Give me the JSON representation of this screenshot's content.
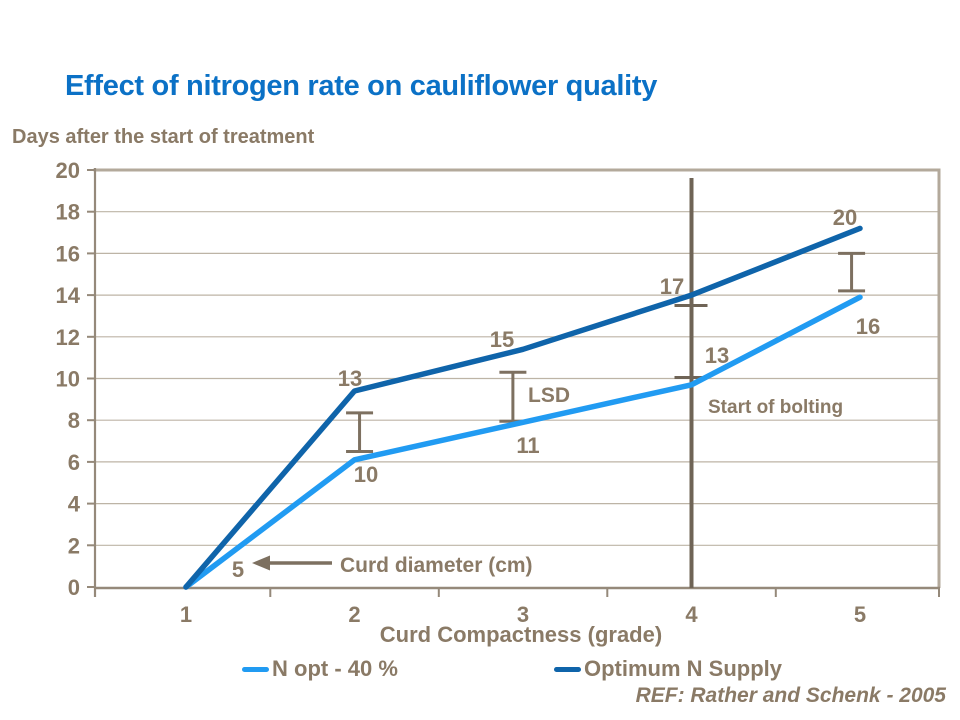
{
  "slide": {
    "ref": "REF: Rather and Schenk - 2005"
  },
  "colors": {
    "title": "#0B71C6",
    "text_brown": "#8A7A66",
    "grid": "#BDB4A6",
    "border": "#B3A99B",
    "axis": "#95897A",
    "annotation": "#7D7060",
    "bolting_line": "#6F6456",
    "series_light": "#219BF2",
    "series_dark": "#0F64AA"
  },
  "chart_data": {
    "type": "line",
    "title": "Effect of nitrogen rate on cauliflower quality",
    "xlabel": "Curd Compactness (grade)",
    "ylabel": "Days after the start of treatment",
    "x": [
      1,
      2,
      3,
      4,
      5
    ],
    "ylim": [
      0,
      20
    ],
    "ytick_step": 2,
    "grid": true,
    "legend_position": "bottom",
    "series": [
      {
        "name": "N opt - 40 %",
        "color": "#219BF2",
        "values": [
          0,
          6.1,
          7.9,
          9.7,
          13.9
        ],
        "point_labels": [
          "5",
          "10",
          "11",
          "13",
          "16"
        ]
      },
      {
        "name": "Optimum N Supply",
        "color": "#0F64AA",
        "values": [
          0,
          9.4,
          11.4,
          14.0,
          17.2
        ],
        "point_labels": [
          null,
          "13",
          "15",
          "17",
          "20"
        ]
      }
    ],
    "point_labels_meaning": "Curd diameter (cm)",
    "error_bars": [
      {
        "x": 2.03,
        "y_top": 8.35,
        "y_bottom": 6.5
      },
      {
        "x": 2.94,
        "y_top": 10.3,
        "y_bottom": 7.95,
        "label": "LSD"
      },
      {
        "x": 4.95,
        "y_top": 16.0,
        "y_bottom": 14.2
      }
    ],
    "reference_line": {
      "x": 4,
      "label": "Start of bolting",
      "tick_values": [
        13.5,
        10.05
      ]
    },
    "annotations": {
      "lsd": "LSD",
      "start_of_bolting": "Start of bolting",
      "curd_diameter": "Curd diameter (cm)"
    }
  }
}
